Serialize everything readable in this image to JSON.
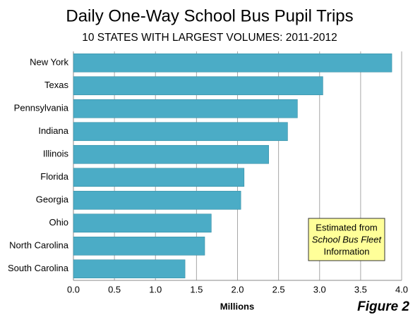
{
  "chart_data": {
    "type": "hbar",
    "title": "Daily One-Way School Bus Pupil Trips",
    "subtitle": "10 STATES WITH LARGEST VOLUMES: 2011-2012",
    "xlabel": "Millions",
    "categories": [
      "New York",
      "Texas",
      "Pennsylvania",
      "Indiana",
      "Illinois",
      "Florida",
      "Georgia",
      "Ohio",
      "North Carolina",
      "South Carolina"
    ],
    "values": [
      3.88,
      3.04,
      2.73,
      2.61,
      2.38,
      2.08,
      2.04,
      1.68,
      1.6,
      1.36
    ],
    "color": "#4bacc6",
    "xlim": [
      0,
      4
    ],
    "xticks": [
      {
        "value": 0,
        "label": "0.0"
      },
      0.5,
      {
        "value": 1,
        "label": "1.0"
      },
      1.5,
      {
        "value": 2,
        "label": "2.0"
      },
      2.5,
      {
        "value": 3,
        "label": "3.0"
      },
      3.5,
      {
        "value": 4,
        "label": "4.0"
      }
    ],
    "grid": true,
    "annotation": [
      "Estimated from",
      "School Bus Fleet",
      "Information"
    ],
    "figure_label": "Figure 2"
  }
}
